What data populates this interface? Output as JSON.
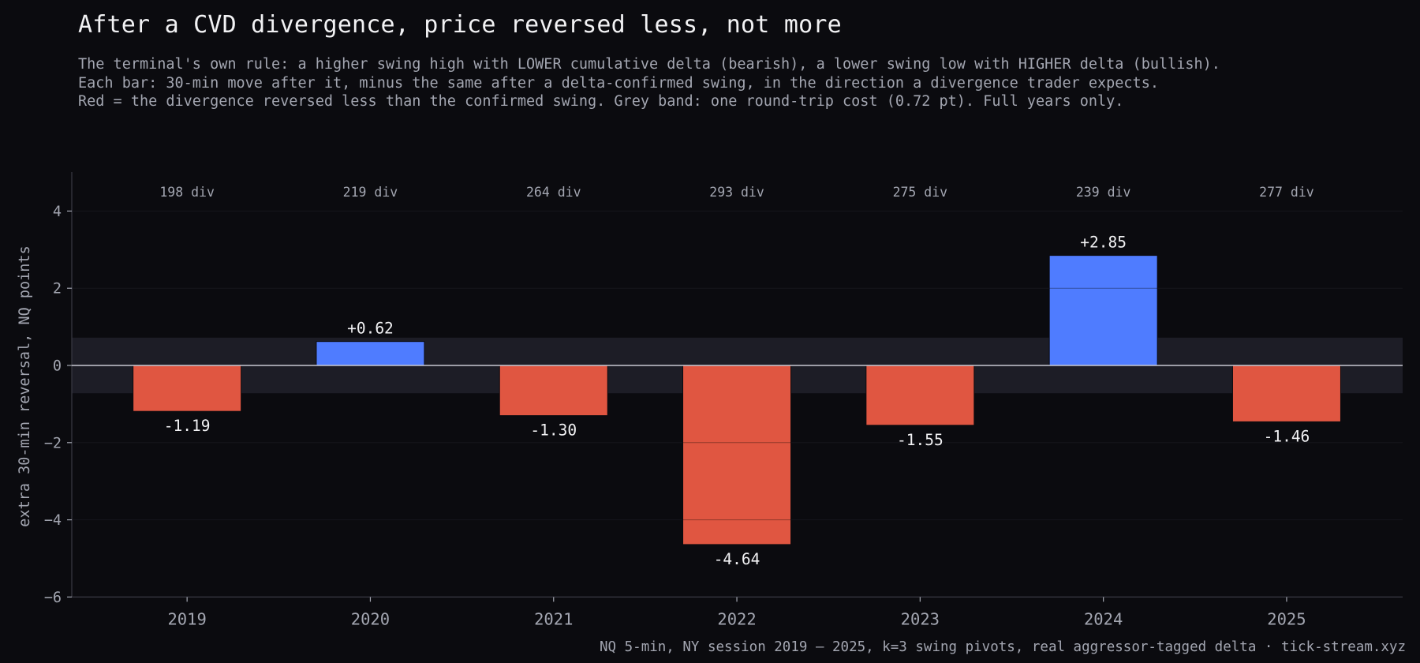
{
  "title": "After a CVD divergence, price reversed less, not more",
  "subtitle": [
    "The terminal's own rule: a higher swing high with LOWER cumulative delta (bearish), a lower swing low with HIGHER delta (bullish).",
    "Each bar: 30-min move after it, minus the same after a delta-confirmed swing, in the direction a divergence trader expects.",
    "Red = the divergence reversed less than the confirmed swing. Grey band: one round-trip cost (0.72 pt). Full years only."
  ],
  "footer": "NQ 5-min, NY session 2019 – 2025, k=3 swing pivots, real aggressor-tagged delta · tick-stream.xyz",
  "colors": {
    "background": "#0b0b0f",
    "positive": "#4f7cff",
    "negative": "#e05641",
    "band": "#1d1d26",
    "zero_line": "#c8c8d2",
    "axis": "#3a3a44",
    "text_muted": "#a3a6b1"
  },
  "chart_data": {
    "type": "bar",
    "categories": [
      "2019",
      "2020",
      "2021",
      "2022",
      "2023",
      "2024",
      "2025"
    ],
    "values": [
      -1.19,
      0.62,
      -1.3,
      -4.64,
      -1.55,
      2.85,
      -1.46
    ],
    "value_labels": [
      "-1.19",
      "+0.62",
      "-1.30",
      "-4.64",
      "-1.55",
      "+2.85",
      "-1.46"
    ],
    "counts": [
      "198 div",
      "219 div",
      "264 div",
      "293 div",
      "275 div",
      "239 div",
      "277 div"
    ],
    "ylabel": "extra 30-min reversal, NQ points",
    "xlabel": "",
    "ylim": [
      -6,
      5
    ],
    "yticks": [
      4,
      2,
      0,
      -2,
      -4,
      -6
    ],
    "ytick_labels": [
      "4",
      "2",
      "0",
      "−2",
      "−4",
      "−6"
    ],
    "cost_band": [
      -0.72,
      0.72
    ],
    "grid": true
  }
}
